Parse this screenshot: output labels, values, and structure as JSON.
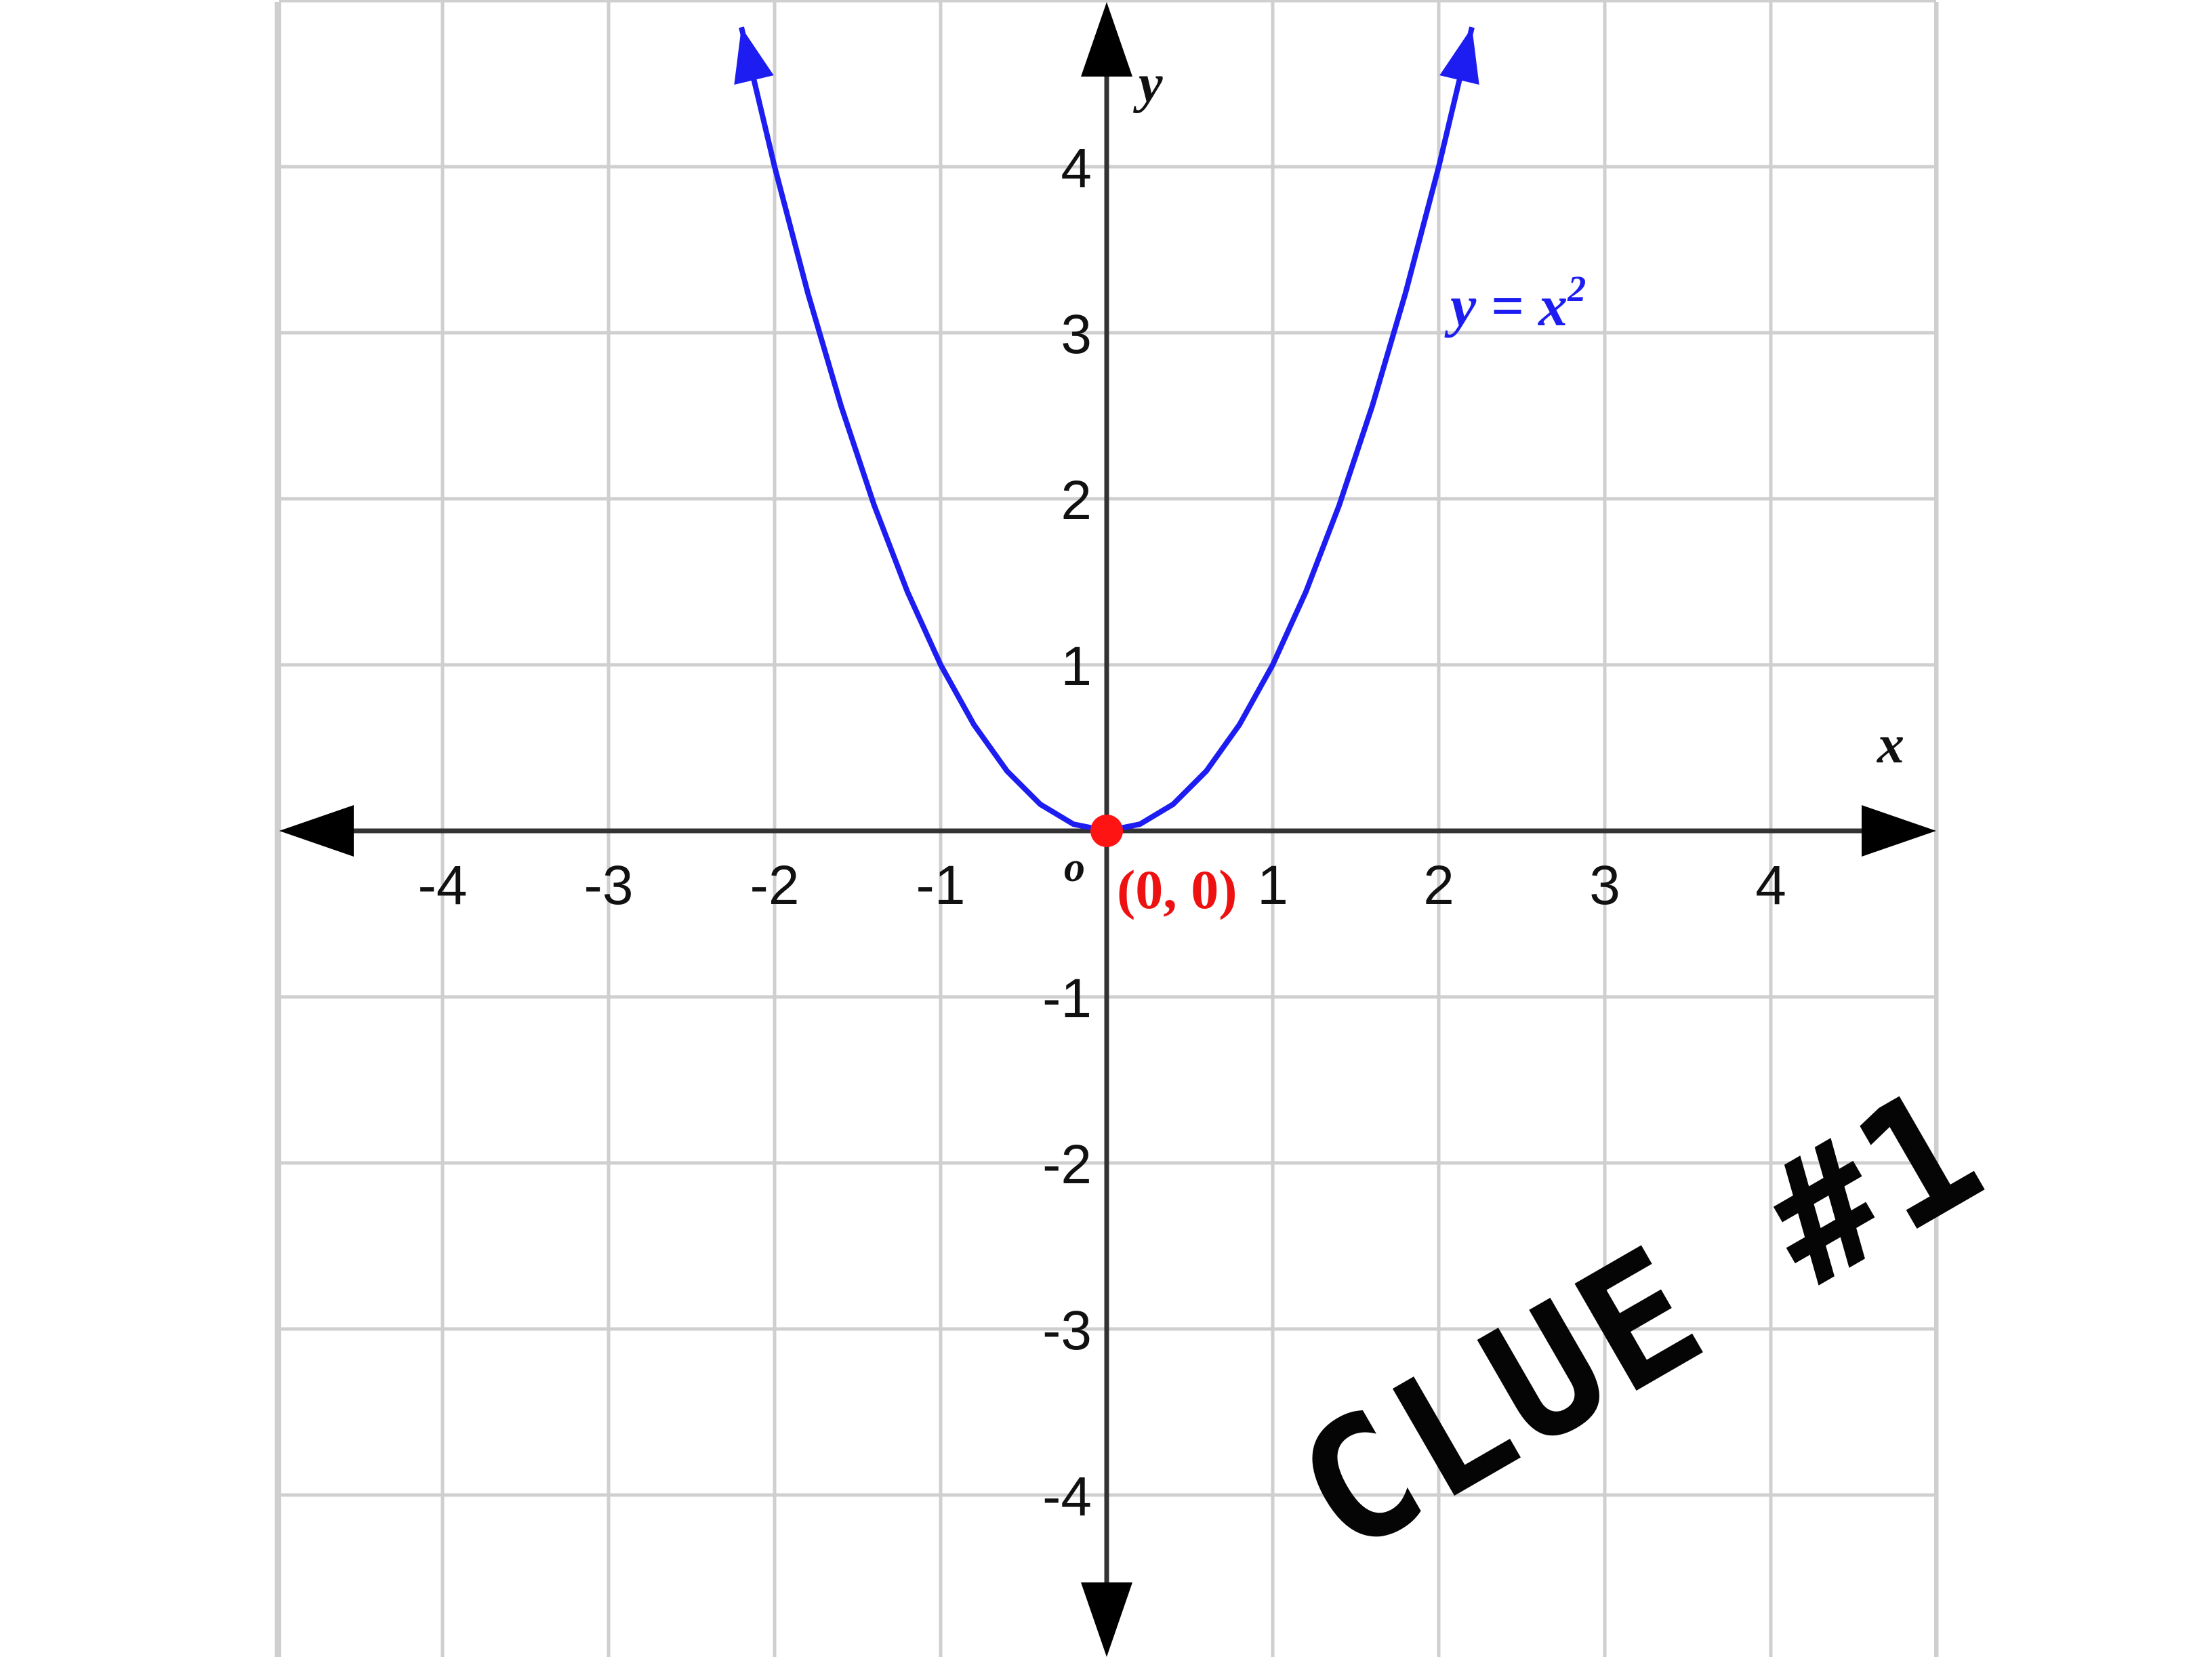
{
  "chart_data": {
    "type": "line",
    "title": "",
    "xlabel": "x",
    "ylabel": "y",
    "xlim": [
      -5,
      5
    ],
    "ylim": [
      -5,
      5
    ],
    "grid": true,
    "x_ticks": [
      -4,
      -3,
      -2,
      -1,
      1,
      2,
      3,
      4
    ],
    "y_ticks": [
      -4,
      -3,
      -2,
      -1,
      1,
      2,
      3,
      4
    ],
    "origin_label": "o",
    "series": [
      {
        "name": "y = x²",
        "name_base": "y = x",
        "name_exponent": "2",
        "color": "#1d1df2",
        "x": [
          -2.2,
          -2.0,
          -1.8,
          -1.6,
          -1.4,
          -1.2,
          -1.0,
          -0.8,
          -0.6,
          -0.4,
          -0.2,
          0.0,
          0.2,
          0.4,
          0.6,
          0.8,
          1.0,
          1.2,
          1.4,
          1.6,
          1.8,
          2.0,
          2.2
        ],
        "y": [
          4.84,
          4.0,
          3.24,
          2.56,
          1.96,
          1.44,
          1.0,
          0.64,
          0.36,
          0.16,
          0.04,
          0.0,
          0.04,
          0.16,
          0.36,
          0.64,
          1.0,
          1.44,
          1.96,
          2.56,
          3.24,
          4.0,
          4.84
        ]
      }
    ],
    "annotations": [
      {
        "text": "(0, 0)",
        "x": 0,
        "y": 0,
        "color": "#ee1111"
      }
    ]
  },
  "caption": "CLUE #1"
}
